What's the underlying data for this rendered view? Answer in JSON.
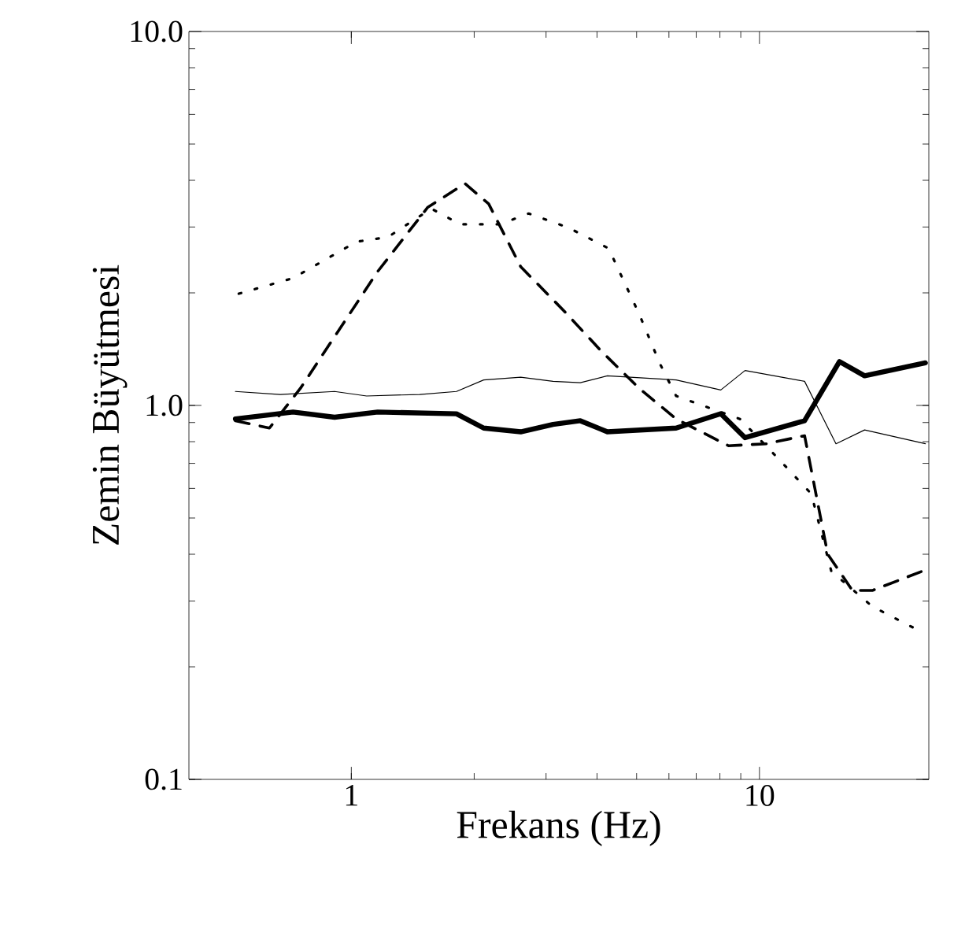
{
  "chart_data": {
    "type": "line",
    "xlabel": "Frekans (Hz)",
    "ylabel": "Zemin Büyütmesi",
    "log": "xy",
    "grid": false,
    "marker": "none",
    "xlim": [
      0.4,
      26
    ],
    "ylim": [
      0.1,
      10
    ],
    "xticks": [
      1,
      10
    ],
    "yticks": [
      {
        "value": 0.1,
        "label": "0.1"
      },
      {
        "value": 1,
        "label": "1.0"
      },
      {
        "value": 10,
        "label": "10.0"
      }
    ],
    "series": [
      {
        "color": "#000000",
        "line_style": "solid",
        "x": [
          0.52,
          0.72,
          0.91,
          1.16,
          1.81,
          2.11,
          2.6,
          3.12,
          3.64,
          4.24,
          6.25,
          8.04,
          9.22,
          12.9,
          15.7,
          18.1,
          25.5
        ],
        "values": [
          0.92,
          0.96,
          0.93,
          0.96,
          0.95,
          0.87,
          0.85,
          0.89,
          0.91,
          0.85,
          0.87,
          0.95,
          0.82,
          0.91,
          1.31,
          1.2,
          1.3
        ]
      },
      {
        "color": "#000000",
        "line_style": "solid",
        "x": [
          0.52,
          0.67,
          0.91,
          1.09,
          1.47,
          1.81,
          2.11,
          2.6,
          3.12,
          3.64,
          4.24,
          6.25,
          8.04,
          9.22,
          12.9,
          15.4,
          18.1,
          25.5
        ],
        "values": [
          1.09,
          1.07,
          1.09,
          1.06,
          1.07,
          1.09,
          1.17,
          1.19,
          1.16,
          1.15,
          1.2,
          1.17,
          1.1,
          1.24,
          1.16,
          0.79,
          0.86,
          0.79
        ]
      },
      {
        "color": "#000000",
        "line_style": "dotted",
        "x": [
          0.53,
          0.72,
          1.03,
          1.23,
          1.57,
          1.85,
          2.31,
          2.72,
          3.4,
          4.27,
          5.08,
          5.71,
          6.25,
          8.96,
          11.0,
          13.4,
          15.0,
          18.9,
          24.6
        ],
        "values": [
          1.99,
          2.19,
          2.74,
          2.82,
          3.36,
          3.05,
          3.05,
          3.26,
          2.99,
          2.63,
          1.75,
          1.29,
          1.06,
          0.92,
          0.73,
          0.58,
          0.36,
          0.29,
          0.25
        ]
      },
      {
        "color": "#000000",
        "line_style": "dashed",
        "x": [
          0.52,
          0.63,
          0.75,
          1.16,
          1.54,
          1.9,
          2.17,
          2.6,
          3.32,
          4.09,
          5.08,
          6.25,
          8.4,
          10.4,
          12.9,
          14.7,
          16.9,
          18.9,
          25.0
        ],
        "values": [
          0.91,
          0.87,
          1.11,
          2.28,
          3.39,
          3.92,
          3.46,
          2.35,
          1.79,
          1.4,
          1.11,
          0.92,
          0.78,
          0.79,
          0.83,
          0.4,
          0.32,
          0.32,
          0.36
        ]
      }
    ]
  }
}
